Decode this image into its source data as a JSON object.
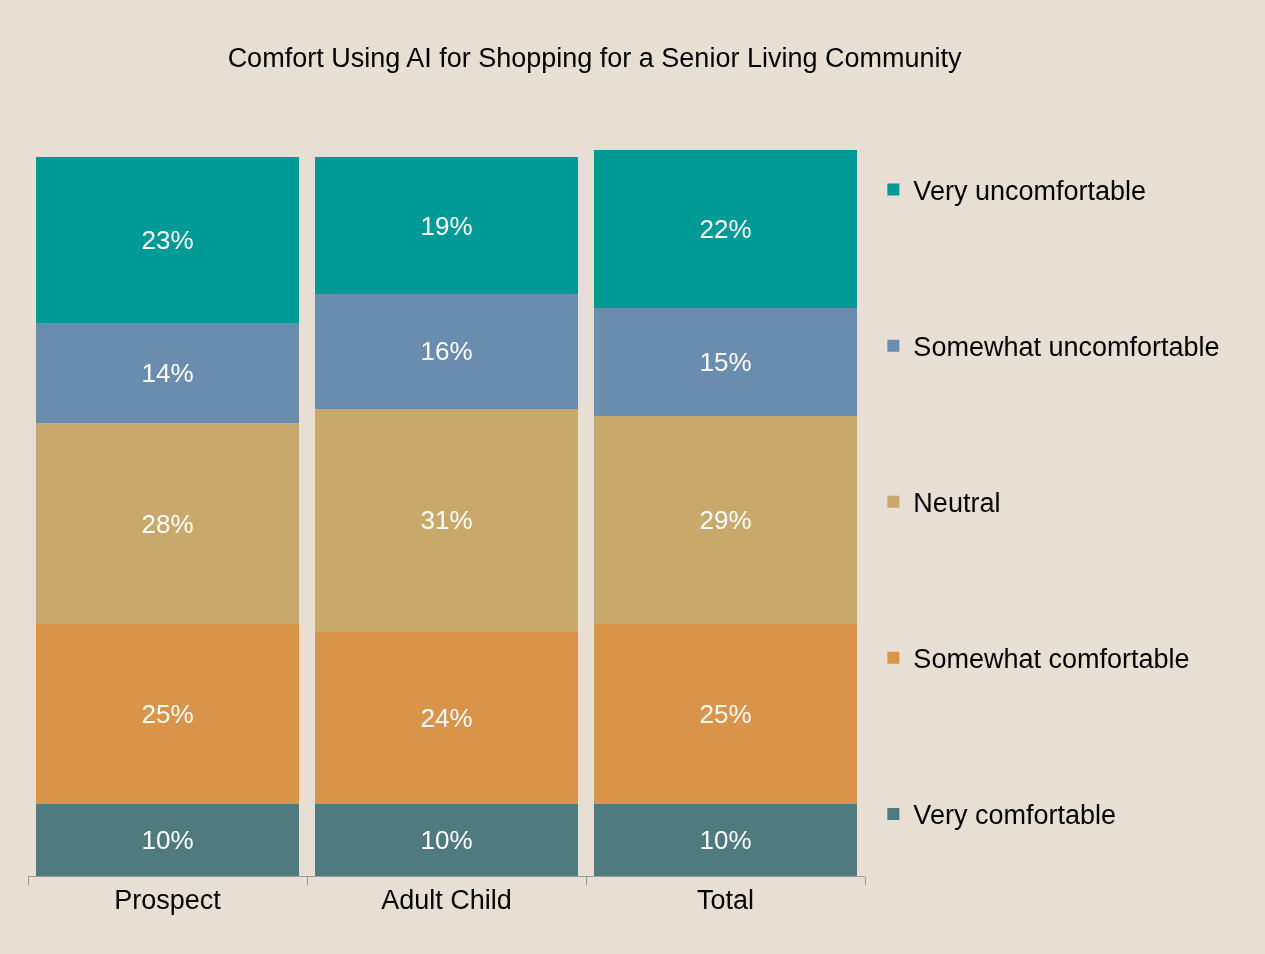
{
  "chart_data": {
    "type": "bar",
    "title": "Comfort Using AI for Shopping for a Senior Living Community",
    "stacked": true,
    "categories": [
      "Prospect",
      "Adult Child",
      "Total"
    ],
    "series": [
      {
        "name": "Very comfortable",
        "color": "#4f7a7f",
        "values": [
          10,
          10,
          10
        ],
        "value_labels": [
          "10%",
          "10%",
          "10%"
        ]
      },
      {
        "name": "Somewhat comfortable",
        "color": "#d9944a",
        "values": [
          25,
          24,
          25
        ],
        "value_labels": [
          "25%",
          "24%",
          "25%"
        ]
      },
      {
        "name": "Neutral",
        "color": "#c8a96b",
        "values": [
          28,
          31,
          29
        ],
        "value_labels": [
          "28%",
          "31%",
          "29%"
        ]
      },
      {
        "name": "Somewhat uncomfortable",
        "color": "#6a8caf",
        "values": [
          14,
          16,
          15
        ],
        "value_labels": [
          "14%",
          "16%",
          "15%"
        ]
      },
      {
        "name": "Very uncomfortable",
        "color": "#009a96",
        "values": [
          23,
          19,
          22
        ],
        "value_labels": [
          "23%",
          "19%",
          "22%"
        ]
      }
    ],
    "legend": "right",
    "grid": false,
    "tick_labels": "x"
  }
}
